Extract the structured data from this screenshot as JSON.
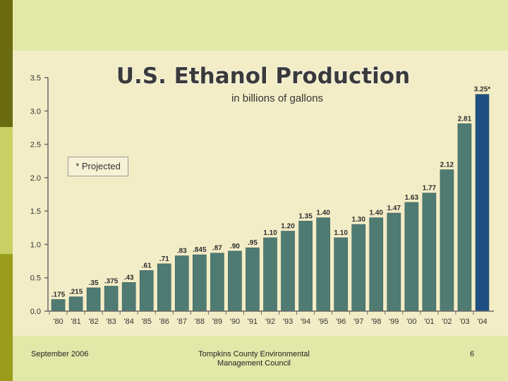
{
  "slide": {
    "footer_date": "September 2006",
    "footer_org_line1": "Tompkins County Environmental",
    "footer_org_line2": "Management Council",
    "page_number": "6"
  },
  "colors": {
    "background": "#e2e8a8",
    "panel": "#f3edc7",
    "bar": "#4f7b73",
    "bar_projected": "#1f4f82"
  },
  "chart_data": {
    "type": "bar",
    "title": "U.S. Ethanol Production",
    "subtitle": "in billions of gallons",
    "legend_note": "* Projected",
    "ylim": [
      0,
      3.5
    ],
    "yticks": [
      "0.0",
      "0.5",
      "1.0",
      "1.5",
      "2.0",
      "2.5",
      "3.0",
      "3.5"
    ],
    "ytick_values": [
      0,
      0.5,
      1.0,
      1.5,
      2.0,
      2.5,
      3.0,
      3.5
    ],
    "categories": [
      "'80",
      "'81",
      "'82",
      "'83",
      "'84",
      "'85",
      "'86",
      "'87",
      "'88",
      "'89",
      "'90",
      "'91",
      "'92",
      "'93",
      "'94",
      "'95",
      "'96",
      "'97",
      "'98",
      "'99",
      "'00",
      "'01",
      "'02",
      "'03",
      "'04"
    ],
    "values": [
      0.175,
      0.215,
      0.35,
      0.375,
      0.43,
      0.61,
      0.71,
      0.83,
      0.845,
      0.87,
      0.9,
      0.95,
      1.1,
      1.2,
      1.35,
      1.4,
      1.1,
      1.3,
      1.4,
      1.47,
      1.63,
      1.77,
      2.12,
      2.81,
      3.25
    ],
    "value_labels": [
      ".175",
      ".215",
      ".35",
      ".375",
      ".43",
      ".61",
      ".71",
      ".83",
      ".845",
      ".87",
      ".90",
      ".95",
      "1.10",
      "1.20",
      "1.35",
      "1.40",
      "1.10",
      "1.30",
      "1.40",
      "1.47",
      "1.63",
      "1.77",
      "2.12",
      "2.81",
      "3.25*"
    ],
    "projected": [
      false,
      false,
      false,
      false,
      false,
      false,
      false,
      false,
      false,
      false,
      false,
      false,
      false,
      false,
      false,
      false,
      false,
      false,
      false,
      false,
      false,
      false,
      false,
      false,
      true
    ]
  }
}
